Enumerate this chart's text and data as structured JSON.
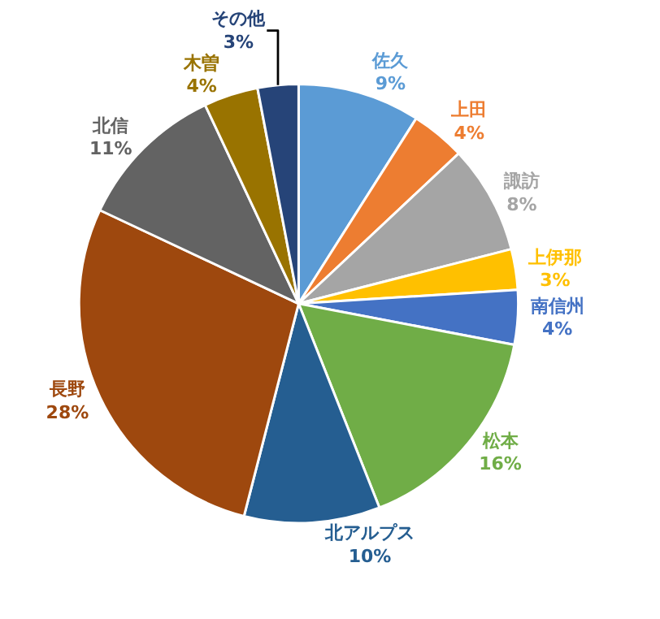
{
  "chart_data": {
    "type": "pie",
    "categories": [
      "佐久",
      "上田",
      "諏訪",
      "上伊那",
      "南信州",
      "松本",
      "北アルプス",
      "長野",
      "北信",
      "木曽",
      "その他"
    ],
    "values": [
      9,
      4,
      8,
      3,
      4,
      16,
      10,
      28,
      11,
      4,
      3
    ],
    "value_labels": [
      "9%",
      "4%",
      "8%",
      "3%",
      "4%",
      "16%",
      "10%",
      "28%",
      "11%",
      "4%",
      "3%"
    ],
    "colors": [
      "#5b9bd5",
      "#ed7d31",
      "#a5a5a5",
      "#ffc000",
      "#4472c4",
      "#70ad47",
      "#255e91",
      "#9e480e",
      "#636363",
      "#997300",
      "#264478"
    ]
  }
}
